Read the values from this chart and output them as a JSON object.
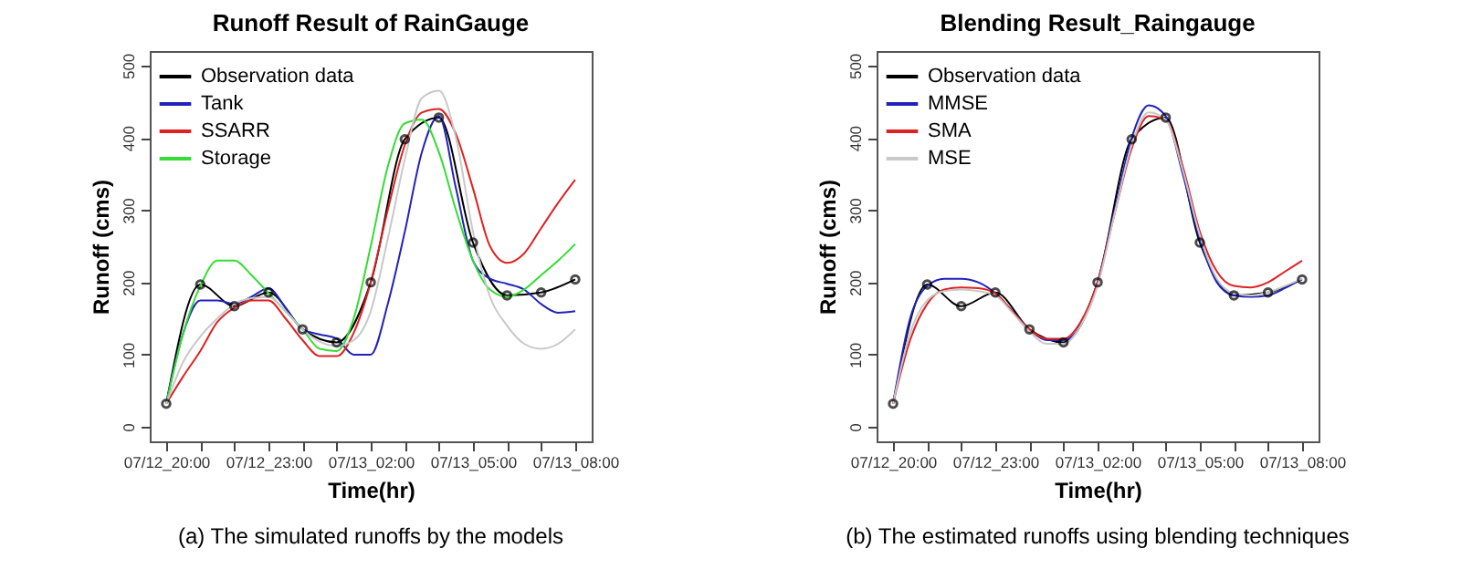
{
  "chart_data": [
    {
      "type": "line",
      "title": "Runoff Result of RainGauge",
      "xlabel": "Time(hr)",
      "ylabel": "Runoff (cms)",
      "annotations": [
        "(a) The simulated runoffs by the models"
      ],
      "xlim": [
        "--07-12T19:31",
        "--07-13T08:29"
      ],
      "ylim": [
        -20,
        520
      ],
      "yticks": [
        0,
        100,
        200,
        300,
        400,
        500
      ],
      "xticks": [
        {
          "value": "--07-12T20:00",
          "label": "07/12_20:00"
        },
        {
          "value": "--07-12T21:00",
          "label": null
        },
        {
          "value": "--07-12T22:00",
          "label": null
        },
        {
          "value": "--07-12T23:00",
          "label": "07/12_23:00"
        },
        {
          "value": "--07-13T00:00",
          "label": null
        },
        {
          "value": "--07-13T01:00",
          "label": null
        },
        {
          "value": "--07-13T02:00",
          "label": "07/13_02:00"
        },
        {
          "value": "--07-13T03:00",
          "label": null
        },
        {
          "value": "--07-13T04:00",
          "label": null
        },
        {
          "value": "--07-13T05:00",
          "label": "07/13_05:00"
        },
        {
          "value": "--07-13T06:00",
          "label": null
        },
        {
          "value": "--07-13T07:00",
          "label": null
        },
        {
          "value": "--07-13T08:00",
          "label": "07/13_08:00"
        }
      ],
      "grid": false,
      "legend": "top left",
      "series": [
        {
          "name": "Observation data",
          "color": "#000000",
          "marker": "circle",
          "x": [
            "--07-12T20:00",
            "--07-12T21:00",
            "--07-12T22:00",
            "--07-12T23:00",
            "--07-13T00:00",
            "--07-13T01:00",
            "--07-13T02:00",
            "--07-13T03:00",
            "--07-13T04:00",
            "--07-13T05:00",
            "--07-13T06:00",
            "--07-13T07:00",
            "--07-13T08:00"
          ],
          "values": [
            32,
            197,
            167,
            186,
            135,
            117,
            200,
            398,
            428,
            255,
            182,
            186,
            204
          ]
        },
        {
          "name": "Tank",
          "color": "#2222bb",
          "values": [
            32,
            130,
            175,
            175,
            170,
            180,
            192,
            165,
            135,
            128,
            122,
            100,
            100,
            170,
            270,
            380,
            430,
            330,
            230,
            205,
            198,
            190,
            170,
            158,
            160
          ]
        },
        {
          "name": "SSARR",
          "color": "#dd2222",
          "values": [
            32,
            70,
            105,
            145,
            165,
            175,
            175,
            150,
            120,
            98,
            98,
            130,
            200,
            300,
            390,
            435,
            440,
            405,
            330,
            250,
            227,
            240,
            275,
            310,
            342
          ]
        },
        {
          "name": "Storage",
          "color": "#33dd33",
          "values": [
            32,
            130,
            195,
            230,
            230,
            210,
            185,
            160,
            135,
            108,
            105,
            150,
            250,
            360,
            420,
            425,
            380,
            300,
            230,
            190,
            180,
            190,
            210,
            230,
            253
          ]
        },
        {
          "color": "#c8c8c8",
          "values": [
            32,
            90,
            125,
            150,
            170,
            178,
            180,
            160,
            135,
            118,
            112,
            120,
            160,
            260,
            370,
            455,
            465,
            400,
            270,
            180,
            140,
            115,
            108,
            115,
            135
          ]
        }
      ],
      "x": [
        "--07-12T20:00",
        "--07-12T20:30",
        "--07-12T21:00",
        "--07-12T21:30",
        "--07-12T22:00",
        "--07-12T22:30",
        "--07-12T23:00",
        "--07-12T23:30",
        "--07-13T00:00",
        "--07-13T00:30",
        "--07-13T01:00",
        "--07-13T01:30",
        "--07-13T02:00",
        "--07-13T02:30",
        "--07-13T03:00",
        "--07-13T03:30",
        "--07-13T04:00",
        "--07-13T04:30",
        "--07-13T05:00",
        "--07-13T05:30",
        "--07-13T06:00",
        "--07-13T06:30",
        "--07-13T07:00",
        "--07-13T07:30",
        "--07-13T08:00"
      ]
    },
    {
      "type": "line",
      "title": "Blending Result_Raingauge",
      "xlabel": "Time(hr)",
      "ylabel": "Runoff (cms)",
      "annotations": [
        "(b) The estimated runoffs using blending techniques"
      ],
      "xlim": [
        "--07-12T19:31",
        "--07-13T08:29"
      ],
      "ylim": [
        -20,
        520
      ],
      "yticks": [
        0,
        100,
        200,
        300,
        400,
        500
      ],
      "xticks": [
        {
          "value": "--07-12T20:00",
          "label": "07/12_20:00"
        },
        {
          "value": "--07-12T21:00",
          "label": null
        },
        {
          "value": "--07-12T22:00",
          "label": null
        },
        {
          "value": "--07-12T23:00",
          "label": "07/12_23:00"
        },
        {
          "value": "--07-13T00:00",
          "label": null
        },
        {
          "value": "--07-13T01:00",
          "label": null
        },
        {
          "value": "--07-13T02:00",
          "label": "07/13_02:00"
        },
        {
          "value": "--07-13T03:00",
          "label": null
        },
        {
          "value": "--07-13T04:00",
          "label": null
        },
        {
          "value": "--07-13T05:00",
          "label": "07/13_05:00"
        },
        {
          "value": "--07-13T06:00",
          "label": null
        },
        {
          "value": "--07-13T07:00",
          "label": null
        },
        {
          "value": "--07-13T08:00",
          "label": "07/13_08:00"
        }
      ],
      "grid": false,
      "legend": "top left",
      "series": [
        {
          "name": "Observation data",
          "color": "#000000",
          "marker": "circle",
          "x": [
            "--07-12T20:00",
            "--07-12T21:00",
            "--07-12T22:00",
            "--07-12T23:00",
            "--07-13T00:00",
            "--07-13T01:00",
            "--07-13T02:00",
            "--07-13T03:00",
            "--07-13T04:00",
            "--07-13T05:00",
            "--07-13T06:00",
            "--07-13T07:00",
            "--07-13T08:00"
          ],
          "values": [
            32,
            197,
            167,
            186,
            135,
            117,
            200,
            398,
            428,
            255,
            182,
            186,
            204
          ]
        },
        {
          "name": "MMSE",
          "color": "#2222bb",
          "values": [
            32,
            150,
            195,
            205,
            205,
            200,
            185,
            160,
            135,
            120,
            120,
            140,
            200,
            300,
            400,
            445,
            430,
            350,
            260,
            200,
            182,
            180,
            182,
            192,
            205
          ]
        },
        {
          "name": "SMA",
          "color": "#dd2222",
          "values": [
            32,
            120,
            170,
            190,
            193,
            192,
            185,
            160,
            135,
            122,
            122,
            145,
            200,
            295,
            385,
            430,
            425,
            360,
            270,
            215,
            195,
            193,
            200,
            215,
            230
          ]
        },
        {
          "name": "MSE",
          "color": "#c8c8c8",
          "values": [
            32,
            130,
            175,
            188,
            190,
            188,
            182,
            158,
            132,
            115,
            115,
            140,
            195,
            295,
            390,
            435,
            425,
            355,
            265,
            205,
            185,
            182,
            186,
            195,
            205
          ]
        }
      ],
      "x": [
        "--07-12T20:00",
        "--07-12T20:30",
        "--07-12T21:00",
        "--07-12T21:30",
        "--07-12T22:00",
        "--07-12T22:30",
        "--07-12T23:00",
        "--07-12T23:30",
        "--07-13T00:00",
        "--07-13T00:30",
        "--07-13T01:00",
        "--07-13T01:30",
        "--07-13T02:00",
        "--07-13T02:30",
        "--07-13T03:00",
        "--07-13T03:30",
        "--07-13T04:00",
        "--07-13T04:30",
        "--07-13T05:00",
        "--07-13T05:30",
        "--07-13T06:00",
        "--07-13T06:30",
        "--07-13T07:00",
        "--07-13T07:30",
        "--07-13T08:00"
      ]
    }
  ]
}
